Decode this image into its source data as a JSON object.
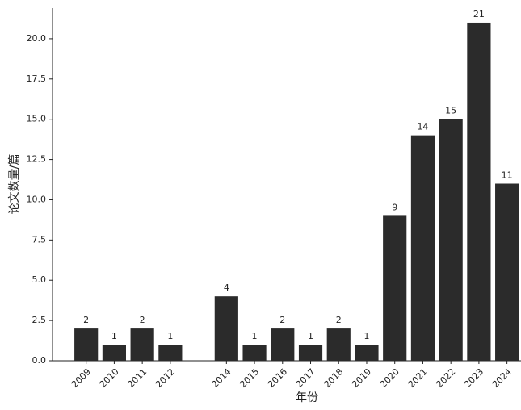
{
  "chart_data": {
    "type": "bar",
    "x": [
      2009,
      2010,
      2011,
      2012,
      2014,
      2015,
      2016,
      2017,
      2018,
      2019,
      2020,
      2021,
      2022,
      2023,
      2024
    ],
    "values": [
      2,
      1,
      2,
      1,
      4,
      1,
      2,
      1,
      2,
      1,
      9,
      14,
      15,
      21,
      11
    ],
    "color": "#2b2b2b",
    "xlabel": "年份",
    "ylabel": "论文数量/篇",
    "xlim": [
      2007.8,
      2024.5
    ],
    "xticks": [
      2009,
      2010,
      2011,
      2012,
      2014,
      2015,
      2016,
      2017,
      2018,
      2019,
      2020,
      2021,
      2022,
      2023,
      2024
    ],
    "ylim": [
      0,
      21.9
    ],
    "yticks": [
      {
        "value": 0,
        "label": "0.0"
      },
      {
        "value": 2.5,
        "label": "2.5"
      },
      {
        "value": 5,
        "label": "5.0"
      },
      {
        "value": 7.5,
        "label": "7.5"
      },
      {
        "value": 10,
        "label": "10.0"
      },
      {
        "value": 12.5,
        "label": "12.5"
      },
      {
        "value": 15,
        "label": "15.0"
      },
      {
        "value": 17.5,
        "label": "17.5"
      },
      {
        "value": 20,
        "label": "20.0"
      }
    ],
    "grid": false
  }
}
